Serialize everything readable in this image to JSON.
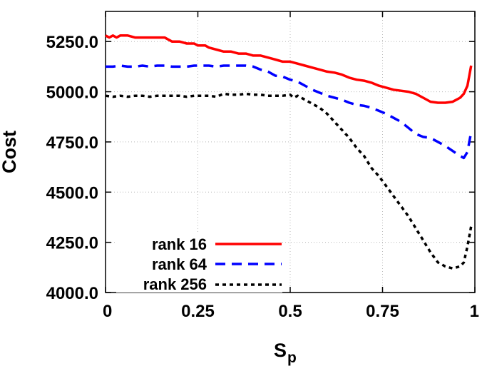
{
  "chart_data": {
    "type": "line",
    "xlabel": "S",
    "xlabel_subscript": "p",
    "ylabel": "Cost",
    "xlim": [
      0,
      1
    ],
    "ylim": [
      4000,
      5400
    ],
    "x_ticks": [
      0,
      0.25,
      0.5,
      0.75,
      1
    ],
    "x_tick_labels": [
      "0",
      "0.25",
      "0.5",
      "0.75",
      "1"
    ],
    "y_ticks": [
      4000,
      4250,
      4500,
      4750,
      5000,
      5250
    ],
    "y_tick_labels": [
      "4000.0",
      "4250.0",
      "4500.0",
      "4750.0",
      "5000.0",
      "5250.0"
    ],
    "grid": true,
    "legend_position": "bottom-left",
    "series": [
      {
        "name": "rank 16",
        "color": "#ff0000",
        "dash": "solid",
        "x": [
          0,
          0.01,
          0.02,
          0.03,
          0.04,
          0.05,
          0.06,
          0.08,
          0.1,
          0.12,
          0.14,
          0.16,
          0.17,
          0.18,
          0.19,
          0.2,
          0.22,
          0.24,
          0.25,
          0.27,
          0.28,
          0.3,
          0.32,
          0.34,
          0.36,
          0.38,
          0.4,
          0.42,
          0.44,
          0.46,
          0.48,
          0.5,
          0.52,
          0.54,
          0.56,
          0.58,
          0.6,
          0.62,
          0.64,
          0.66,
          0.68,
          0.7,
          0.72,
          0.74,
          0.76,
          0.78,
          0.8,
          0.82,
          0.84,
          0.86,
          0.88,
          0.9,
          0.92,
          0.94,
          0.95,
          0.96,
          0.97,
          0.98,
          0.99
        ],
        "values": [
          5280,
          5270,
          5280,
          5270,
          5280,
          5280,
          5280,
          5270,
          5270,
          5270,
          5270,
          5270,
          5260,
          5250,
          5250,
          5250,
          5240,
          5240,
          5230,
          5230,
          5220,
          5210,
          5200,
          5200,
          5190,
          5190,
          5180,
          5180,
          5170,
          5160,
          5150,
          5150,
          5140,
          5130,
          5120,
          5110,
          5100,
          5095,
          5085,
          5070,
          5060,
          5055,
          5045,
          5030,
          5020,
          5010,
          5005,
          5000,
          4990,
          4970,
          4950,
          4945,
          4945,
          4950,
          4960,
          4970,
          4990,
          5030,
          5130
        ]
      },
      {
        "name": "rank 64",
        "color": "#0000ff",
        "dash": "dashed",
        "x": [
          0,
          0.02,
          0.04,
          0.06,
          0.08,
          0.1,
          0.12,
          0.14,
          0.16,
          0.18,
          0.2,
          0.22,
          0.24,
          0.26,
          0.28,
          0.3,
          0.32,
          0.34,
          0.36,
          0.38,
          0.4,
          0.42,
          0.44,
          0.46,
          0.48,
          0.5,
          0.52,
          0.54,
          0.56,
          0.58,
          0.6,
          0.62,
          0.64,
          0.66,
          0.68,
          0.7,
          0.72,
          0.74,
          0.76,
          0.78,
          0.8,
          0.82,
          0.84,
          0.86,
          0.88,
          0.9,
          0.92,
          0.94,
          0.96,
          0.97,
          0.98,
          0.99
        ],
        "values": [
          5125,
          5125,
          5130,
          5125,
          5125,
          5130,
          5125,
          5130,
          5130,
          5125,
          5125,
          5125,
          5130,
          5130,
          5130,
          5125,
          5130,
          5130,
          5130,
          5130,
          5125,
          5110,
          5100,
          5080,
          5075,
          5060,
          5050,
          5030,
          5010,
          4995,
          4980,
          4970,
          4960,
          4945,
          4935,
          4930,
          4920,
          4905,
          4890,
          4870,
          4850,
          4820,
          4790,
          4775,
          4770,
          4750,
          4730,
          4705,
          4680,
          4670,
          4700,
          4800
        ]
      },
      {
        "name": "rank 256",
        "color": "#000000",
        "dash": "dotted",
        "x": [
          0,
          0.02,
          0.04,
          0.06,
          0.08,
          0.1,
          0.12,
          0.14,
          0.16,
          0.18,
          0.2,
          0.22,
          0.24,
          0.26,
          0.28,
          0.3,
          0.32,
          0.34,
          0.36,
          0.38,
          0.4,
          0.42,
          0.44,
          0.46,
          0.48,
          0.5,
          0.51,
          0.52,
          0.54,
          0.56,
          0.58,
          0.6,
          0.62,
          0.64,
          0.66,
          0.68,
          0.7,
          0.72,
          0.74,
          0.76,
          0.78,
          0.8,
          0.82,
          0.84,
          0.86,
          0.88,
          0.9,
          0.92,
          0.94,
          0.95,
          0.96,
          0.97,
          0.98,
          0.99
        ],
        "values": [
          4980,
          4975,
          4980,
          4975,
          4980,
          4980,
          4975,
          4980,
          4980,
          4980,
          4980,
          4975,
          4980,
          4980,
          4980,
          4975,
          4990,
          4985,
          4985,
          4990,
          4985,
          4985,
          4980,
          4980,
          4980,
          4985,
          4970,
          4980,
          4960,
          4940,
          4920,
          4890,
          4850,
          4810,
          4770,
          4720,
          4680,
          4620,
          4580,
          4530,
          4480,
          4430,
          4380,
          4320,
          4260,
          4200,
          4150,
          4130,
          4120,
          4125,
          4130,
          4150,
          4230,
          4330
        ]
      }
    ]
  }
}
